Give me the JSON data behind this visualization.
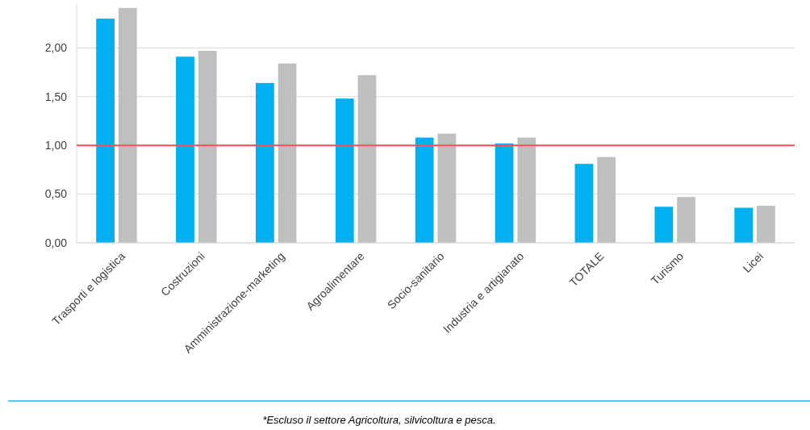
{
  "chart_data": {
    "type": "bar",
    "categories": [
      "Trasporti e logistica",
      "Costruzioni",
      "Amministrazione-marketing",
      "Agroalimentare",
      "Socio-sanitario",
      "Industria e artigianato",
      "TOTALE",
      "Turismo",
      "Licei"
    ],
    "series": [
      {
        "color": "#00b0f0",
        "values": [
          2.3,
          1.91,
          1.64,
          1.48,
          1.08,
          1.02,
          0.81,
          0.37,
          0.36
        ]
      },
      {
        "color": "#bfbfbf",
        "values": [
          2.41,
          1.97,
          1.84,
          1.72,
          1.12,
          1.08,
          0.88,
          0.47,
          0.38
        ]
      }
    ],
    "ylim": [
      0,
      2.45
    ],
    "yticks": [
      {
        "value": 0,
        "label": "0,00"
      },
      {
        "value": 0.5,
        "label": "0,50"
      },
      {
        "value": 1,
        "label": "1,00"
      },
      {
        "value": 1.5,
        "label": "1,50"
      },
      {
        "value": 2,
        "label": "2,00"
      }
    ],
    "grid": "y",
    "ref_lines": [
      {
        "axis": "y",
        "value": 1,
        "label": null,
        "color": "#ff4d5a"
      }
    ],
    "annotations": [
      "*Escluso il settore Agricoltura, silvicoltura e pesca."
    ]
  }
}
